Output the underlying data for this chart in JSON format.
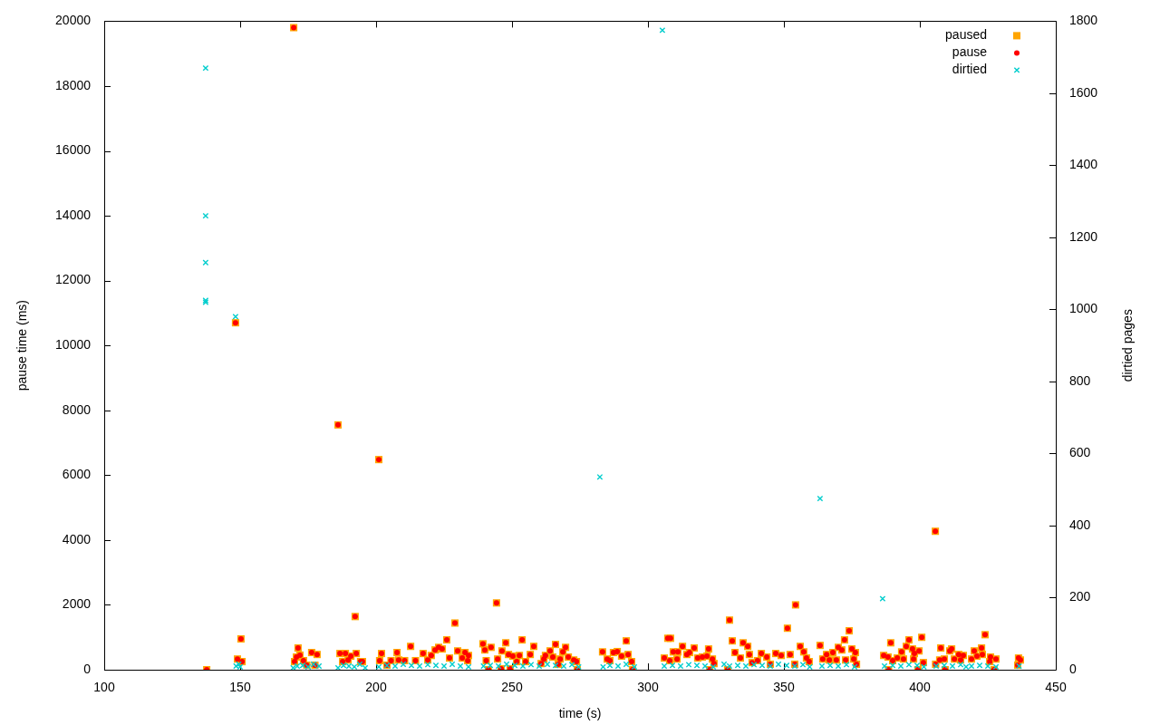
{
  "chart_data": {
    "type": "scatter",
    "xlabel": "time (s)",
    "ylabel": "pause time (ms)",
    "y2label": "dirtied pages",
    "xlim": [
      100,
      450
    ],
    "xticks": [
      100,
      150,
      200,
      250,
      300,
      350,
      400,
      450
    ],
    "ylim": [
      0,
      20000
    ],
    "yticks": [
      0,
      2000,
      4000,
      6000,
      8000,
      10000,
      12000,
      14000,
      16000,
      18000,
      20000
    ],
    "y2lim": [
      0,
      1800
    ],
    "y2ticks": [
      0,
      200,
      400,
      600,
      800,
      1000,
      1200,
      1400,
      1600,
      1800
    ],
    "legend": "top right",
    "series": [
      {
        "name": "paused",
        "color": "#ffa500",
        "marker": "square",
        "x": [
          137.7,
          148.3,
          149,
          150.3,
          150.7,
          169.7,
          170,
          170.7,
          171.3,
          172,
          173.3,
          174.5,
          176.3,
          177.5,
          178.3,
          186,
          186.7,
          187.7,
          188.7,
          189.7,
          190.7,
          192.3,
          192.7,
          194.3,
          195,
          201,
          201.3,
          202,
          204,
          205.5,
          207.7,
          208.3,
          210.5,
          212.7,
          214.5,
          217.3,
          219,
          220.3,
          221.7,
          223,
          224.3,
          226,
          227,
          229,
          230,
          231.7,
          232.7,
          233.7,
          234,
          239.3,
          240,
          240.5,
          241.3,
          242.3,
          244.3,
          244.7,
          246,
          246.3,
          247.7,
          248.7,
          249.3,
          250.3,
          251.7,
          252.7,
          253.7,
          255,
          256.7,
          258,
          260.7,
          261.7,
          262.3,
          264,
          265,
          266,
          267,
          267.7,
          268.7,
          269.7,
          270.7,
          272.7,
          273.7,
          274,
          283.3,
          285,
          286,
          287.3,
          288.7,
          290.3,
          292,
          292.7,
          294,
          294.3,
          306,
          307.3,
          308,
          308.3,
          309.3,
          310.7,
          311,
          312.7,
          314.3,
          315.3,
          317,
          318.3,
          320,
          321.7,
          322.3,
          322.7,
          323.7,
          324.3,
          329.3,
          330,
          331,
          332,
          334,
          335,
          336.7,
          337.3,
          338.3,
          340.3,
          341.7,
          343.7,
          345,
          347,
          349,
          351.3,
          352.3,
          354,
          354.3,
          356,
          357.3,
          358.3,
          359.3,
          363.3,
          364.3,
          365.7,
          366.7,
          368,
          369.3,
          370,
          371.3,
          372.3,
          372.7,
          374,
          375,
          375.7,
          376.3,
          376.7,
          386.7,
          388.3,
          388.5,
          389.3,
          390,
          391.7,
          393.3,
          394,
          395,
          396,
          397.3,
          397.7,
          398,
          399.3,
          399.7,
          400.7,
          401.3,
          405.7,
          405.8,
          407.3,
          407.7,
          409,
          409.3,
          411,
          411.7,
          412.7,
          414.3,
          415,
          416,
          419,
          420,
          421,
          422.7,
          423,
          424,
          425.7,
          426,
          427.3,
          428,
          436,
          436.3,
          437
        ],
        "values": [
          0,
          10700,
          330,
          950,
          250,
          19800,
          250,
          390,
          670,
          450,
          280,
          140,
          530,
          140,
          470,
          7550,
          500,
          250,
          500,
          300,
          420,
          1640,
          500,
          250,
          250,
          6480,
          280,
          500,
          140,
          280,
          530,
          300,
          280,
          720,
          280,
          500,
          300,
          440,
          610,
          690,
          640,
          920,
          360,
          1440,
          580,
          360,
          530,
          280,
          440,
          800,
          610,
          280,
          0,
          690,
          2060,
          330,
          30,
          580,
          830,
          470,
          30,
          420,
          250,
          440,
          920,
          250,
          470,
          720,
          190,
          330,
          440,
          580,
          390,
          780,
          170,
          330,
          550,
          690,
          390,
          300,
          250,
          0,
          550,
          330,
          280,
          530,
          560,
          420,
          890,
          470,
          250,
          0,
          360,
          970,
          280,
          970,
          550,
          330,
          550,
          720,
          470,
          530,
          670,
          360,
          390,
          420,
          640,
          0,
          330,
          190,
          0,
          1530,
          890,
          530,
          360,
          830,
          720,
          470,
          220,
          280,
          500,
          390,
          170,
          500,
          440,
          1280,
          470,
          170,
          2000,
          720,
          550,
          360,
          250,
          750,
          330,
          470,
          300,
          530,
          300,
          690,
          610,
          920,
          300,
          1200,
          640,
          330,
          530,
          170,
          440,
          390,
          0,
          830,
          280,
          360,
          550,
          330,
          720,
          920,
          640,
          330,
          500,
          0,
          580,
          1000,
          220,
          4270,
          170,
          300,
          670,
          330,
          0,
          580,
          640,
          330,
          470,
          300,
          440,
          330,
          580,
          420,
          670,
          470,
          1080,
          250,
          390,
          0,
          330,
          140,
          360,
          300
        ]
      },
      {
        "name": "pause",
        "color": "#ff0000",
        "marker": "circle",
        "x": [
          137.7,
          148.3,
          149,
          150.3,
          150.7,
          169.7,
          170,
          170.7,
          171.3,
          172,
          173.3,
          174.5,
          176.3,
          177.5,
          178.3,
          186,
          186.7,
          187.7,
          188.7,
          189.7,
          190.7,
          192.3,
          192.7,
          194.3,
          195,
          201,
          201.3,
          202,
          204,
          205.5,
          207.7,
          208.3,
          210.5,
          212.7,
          214.5,
          217.3,
          219,
          220.3,
          221.7,
          223,
          224.3,
          226,
          227,
          229,
          230,
          231.7,
          232.7,
          233.7,
          234,
          239.3,
          240,
          240.5,
          241.3,
          242.3,
          244.3,
          244.7,
          246,
          246.3,
          247.7,
          248.7,
          249.3,
          250.3,
          251.7,
          252.7,
          253.7,
          255,
          256.7,
          258,
          260.7,
          261.7,
          262.3,
          264,
          265,
          266,
          267,
          267.7,
          268.7,
          269.7,
          270.7,
          272.7,
          273.7,
          274,
          283.3,
          285,
          286,
          287.3,
          288.7,
          290.3,
          292,
          292.7,
          294,
          294.3,
          306,
          307.3,
          308,
          308.3,
          309.3,
          310.7,
          311,
          312.7,
          314.3,
          315.3,
          317,
          318.3,
          320,
          321.7,
          322.3,
          322.7,
          323.7,
          324.3,
          329.3,
          330,
          331,
          332,
          334,
          335,
          336.7,
          337.3,
          338.3,
          340.3,
          341.7,
          343.7,
          345,
          347,
          349,
          351.3,
          352.3,
          354,
          354.3,
          356,
          357.3,
          358.3,
          359.3,
          363.3,
          364.3,
          365.7,
          366.7,
          368,
          369.3,
          370,
          371.3,
          372.3,
          372.7,
          374,
          375,
          375.7,
          376.3,
          376.7,
          386.7,
          388.3,
          388.5,
          389.3,
          390,
          391.7,
          393.3,
          394,
          395,
          396,
          397.3,
          397.7,
          398,
          399.3,
          399.7,
          400.7,
          401.3,
          405.7,
          405.8,
          407.3,
          407.7,
          409,
          409.3,
          411,
          411.7,
          412.7,
          414.3,
          415,
          416,
          419,
          420,
          421,
          422.7,
          423,
          424,
          425.7,
          426,
          427.3,
          428,
          436,
          436.3,
          437
        ],
        "values": [
          0,
          10700,
          330,
          950,
          250,
          19800,
          250,
          390,
          670,
          450,
          280,
          140,
          530,
          140,
          470,
          7550,
          500,
          250,
          500,
          300,
          420,
          1640,
          500,
          250,
          250,
          6480,
          280,
          500,
          140,
          280,
          530,
          300,
          280,
          720,
          280,
          500,
          300,
          440,
          610,
          690,
          640,
          920,
          360,
          1440,
          580,
          360,
          530,
          280,
          440,
          800,
          610,
          280,
          0,
          690,
          2060,
          330,
          30,
          580,
          830,
          470,
          30,
          420,
          250,
          440,
          920,
          250,
          470,
          720,
          190,
          330,
          440,
          580,
          390,
          780,
          170,
          330,
          550,
          690,
          390,
          300,
          250,
          0,
          550,
          330,
          280,
          530,
          560,
          420,
          890,
          470,
          250,
          0,
          360,
          970,
          280,
          970,
          550,
          330,
          550,
          720,
          470,
          530,
          670,
          360,
          390,
          420,
          640,
          0,
          330,
          190,
          0,
          1530,
          890,
          530,
          360,
          830,
          720,
          470,
          220,
          280,
          500,
          390,
          170,
          500,
          440,
          1280,
          470,
          170,
          2000,
          720,
          550,
          360,
          250,
          750,
          330,
          470,
          300,
          530,
          300,
          690,
          610,
          920,
          300,
          1200,
          640,
          330,
          530,
          170,
          440,
          390,
          0,
          830,
          280,
          360,
          550,
          330,
          720,
          920,
          640,
          330,
          500,
          0,
          580,
          1000,
          220,
          4270,
          170,
          300,
          670,
          330,
          0,
          580,
          640,
          330,
          470,
          300,
          440,
          330,
          580,
          420,
          670,
          470,
          1080,
          250,
          390,
          0,
          330,
          140,
          360,
          300
        ]
      },
      {
        "name": "dirtied",
        "color": "#00cdcd",
        "marker": "cross",
        "axis": "y2",
        "x": [
          137.3,
          137.3,
          137.3,
          137.3,
          137.3,
          148.3,
          148.5,
          149.5,
          150,
          169.5,
          171,
          173,
          175,
          177,
          179,
          186,
          188,
          190,
          192,
          194,
          196,
          201,
          204,
          207,
          210,
          213,
          216,
          219,
          222,
          225,
          228,
          231,
          234,
          239.5,
          242,
          245,
          248,
          251,
          254,
          257,
          260,
          263,
          266,
          269,
          272,
          274.5,
          282.3,
          283.5,
          286,
          289,
          292,
          295,
          305.3,
          306,
          309,
          312,
          315,
          318,
          321,
          324,
          328,
          330,
          333,
          336,
          339,
          342,
          345,
          348,
          351,
          354,
          357,
          359.5,
          363.3,
          364,
          367,
          370,
          373,
          376,
          386.3,
          387,
          390,
          393,
          396,
          399,
          401.5,
          406,
          409,
          412,
          415,
          417,
          419,
          422,
          425,
          428,
          436.5
        ],
        "values": [
          1670,
          1260,
          1130,
          1025,
          1020,
          980,
          10,
          15,
          8,
          5,
          10,
          12,
          8,
          15,
          10,
          5,
          12,
          10,
          8,
          15,
          5,
          8,
          12,
          10,
          15,
          12,
          10,
          14,
          12,
          10,
          15,
          10,
          8,
          10,
          12,
          10,
          15,
          12,
          10,
          14,
          10,
          15,
          12,
          10,
          14,
          8,
          535,
          8,
          12,
          10,
          15,
          8,
          1775,
          10,
          12,
          10,
          14,
          12,
          10,
          8,
          15,
          10,
          12,
          10,
          14,
          12,
          10,
          15,
          12,
          10,
          14,
          8,
          475,
          10,
          12,
          10,
          14,
          8,
          197,
          10,
          12,
          10,
          14,
          12,
          8,
          10,
          12,
          10,
          14,
          8,
          10,
          12,
          10,
          8,
          10
        ]
      }
    ]
  }
}
